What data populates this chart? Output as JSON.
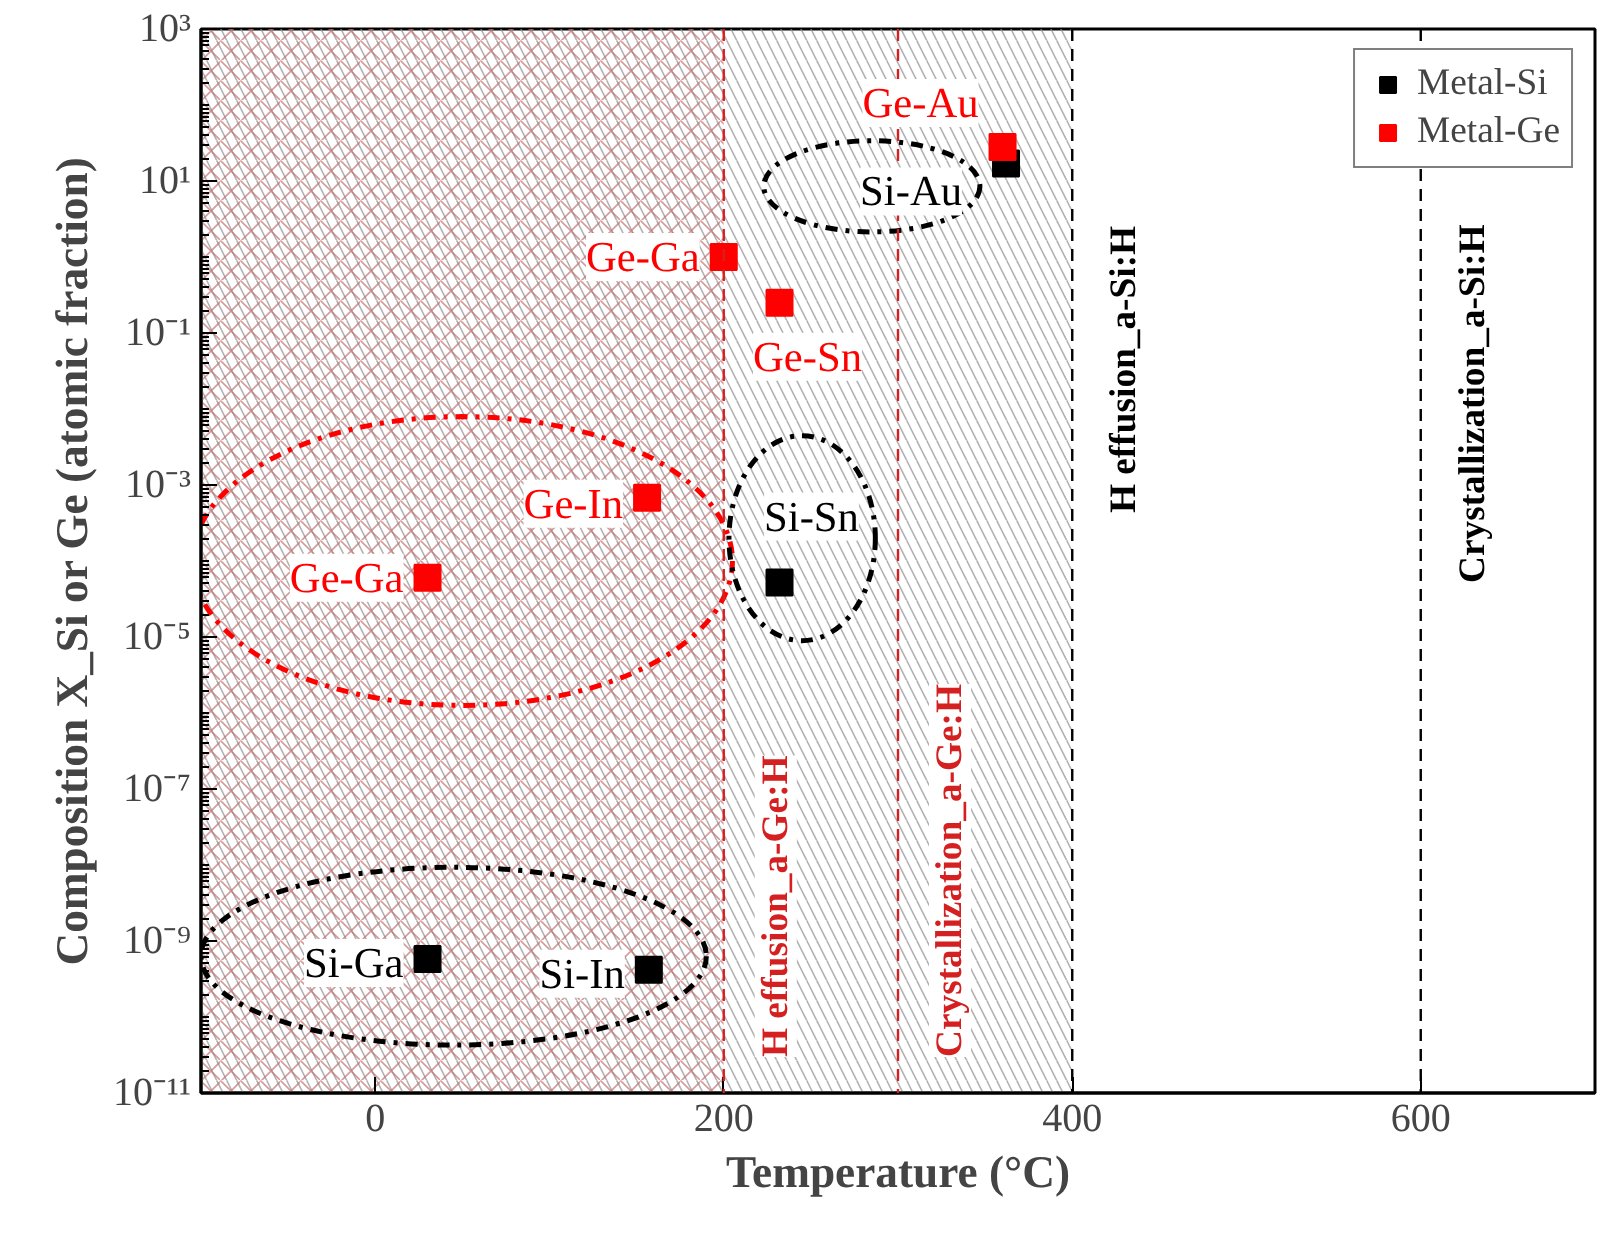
{
  "chart_data": {
    "type": "scatter",
    "xlabel": "Temperature (°C)",
    "ylabel": "Composition X_Si or Ge (atomic fraction)",
    "log": "y",
    "grid": false,
    "legend": "top right",
    "marker": "square",
    "xlim": [
      -100,
      700
    ],
    "xticks": [
      0,
      200,
      400,
      600
    ],
    "ylim": [
      1e-11,
      1000
    ],
    "yticks": [
      {
        "value": 1000,
        "label": "10³"
      },
      {
        "value": 10,
        "label": "10¹"
      },
      {
        "value": 0.1,
        "label": "10⁻¹"
      },
      {
        "value": 0.001,
        "label": "10⁻³"
      },
      {
        "value": 1e-05,
        "label": "10⁻⁵"
      },
      {
        "value": 1e-07,
        "label": "10⁻⁷"
      },
      {
        "value": 1e-09,
        "label": "10⁻⁹"
      },
      {
        "value": 1e-11,
        "label": "10⁻¹¹"
      }
    ],
    "series": [
      {
        "name": "Metal-Si",
        "color": "#000000",
        "x": [
          362,
          232,
          30,
          157
        ],
        "values": [
          17,
          5.2e-05,
          5.8e-10,
          4.2e-10
        ]
      },
      {
        "name": "Metal-Ge",
        "color": "#ff0000",
        "x": [
          360,
          200,
          232,
          156,
          30
        ],
        "values": [
          28,
          1,
          0.25,
          0.00068,
          6e-05
        ]
      }
    ],
    "bands": [
      {
        "axis": "x",
        "from": -100,
        "to": 400,
        "color": "#909090"
      },
      {
        "axis": "x",
        "from": -100,
        "to": 200,
        "color": "#c07070"
      }
    ],
    "ref_lines": [
      {
        "axis": "x",
        "value": 200,
        "label": "H effusion_a-Ge:H",
        "color": "#d42020",
        "line_style": "dashed"
      },
      {
        "axis": "x",
        "value": 300,
        "label": "Crystallization_a-Ge:H",
        "color": "#d42020",
        "line_style": "dashed"
      },
      {
        "axis": "x",
        "value": 400,
        "label": "H effusion_a-Si:H",
        "color": "#000000",
        "line_style": "dashed"
      },
      {
        "axis": "x",
        "value": 600,
        "label": "Crystallization_a-Si:H",
        "color": "#000000",
        "line_style": "dashed"
      }
    ],
    "annotations": [
      {
        "text": "Ge-Au",
        "x": 360,
        "y": 28
      },
      {
        "text": "Si-Au",
        "x": 362,
        "y": 17
      },
      {
        "text": "Ge-Ga",
        "x": 200,
        "y": 1
      },
      {
        "text": "Ge-Sn",
        "x": 232,
        "y": 0.25
      },
      {
        "text": "Ge-In",
        "x": 156,
        "y": 0.00068
      },
      {
        "text": "Si-Sn",
        "x": 232,
        "y": 5.2e-05
      },
      {
        "text": "Ge-Ga",
        "x": 30,
        "y": 6e-05
      },
      {
        "text": "Si-Ga",
        "x": 30,
        "y": 5.8e-10
      },
      {
        "text": "Si-In",
        "x": 157,
        "y": 4.2e-10
      }
    ]
  }
}
